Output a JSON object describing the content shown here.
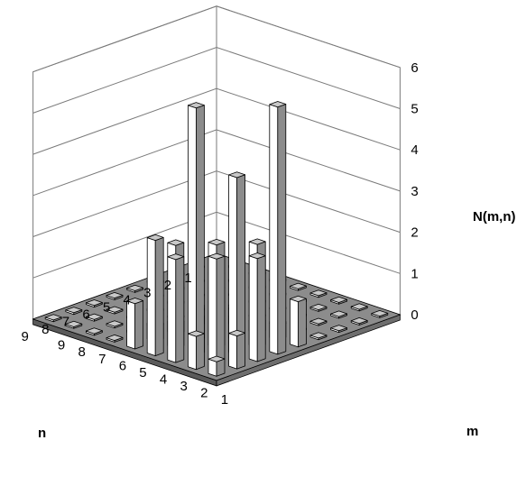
{
  "chart_data": {
    "type": "bar3d",
    "title": "",
    "zlabel": "N(m,n)",
    "xlabel": "m",
    "ylabel": "n",
    "zlim": [
      0,
      6
    ],
    "z_ticks": [
      "0",
      "1",
      "2",
      "3",
      "4",
      "5",
      "6"
    ],
    "m_ticks": [
      "1",
      "2",
      "3",
      "4",
      "5",
      "6",
      "7",
      "8",
      "9"
    ],
    "n_ticks": [
      "1",
      "2",
      "3",
      "4",
      "5",
      "6",
      "7",
      "8",
      "9"
    ],
    "grid": true,
    "colors": {
      "bar_front": "#ffffff",
      "bar_side": "#8c8c8c",
      "bar_top": "#c8c8c8",
      "floor": "#8c8c8c"
    },
    "values": [
      [
        0,
        0,
        0,
        0,
        0,
        0,
        0,
        0,
        0
      ],
      [
        0,
        0,
        0,
        0,
        0,
        0,
        0,
        0,
        0
      ],
      [
        0,
        0,
        0,
        0,
        0,
        0,
        0,
        0,
        0
      ],
      [
        0,
        0,
        0,
        0,
        0,
        0,
        0,
        0,
        0
      ],
      [
        0,
        0,
        0,
        0,
        0.15,
        0.2,
        0.25,
        0.35,
        1.1
      ],
      [
        0,
        0,
        0,
        0,
        0.2,
        0.3,
        0.8,
        2.5,
        6
      ],
      [
        0,
        0,
        0,
        0,
        0.25,
        0.8,
        2.5,
        4.3,
        2.5
      ],
      [
        0,
        0,
        0,
        0,
        0.35,
        2.5,
        6,
        2.5,
        0.8
      ],
      [
        0,
        0,
        0,
        0,
        1.1,
        2.8,
        2.5,
        0.8,
        0.35
      ]
    ]
  }
}
